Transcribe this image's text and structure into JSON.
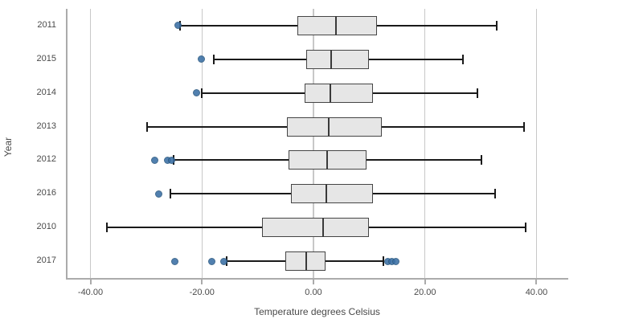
{
  "chart_data": {
    "type": "boxplot",
    "orientation": "horizontal",
    "title": "",
    "xlabel": "Temperature degrees Celsius",
    "ylabel": "Year",
    "xlim": [
      -44.4,
      45.7
    ],
    "x_ticks": [
      -40,
      -20,
      0,
      20,
      40
    ],
    "x_tick_labels": [
      "-40.00",
      "-20.00",
      "0.00",
      "20.00",
      "40.00"
    ],
    "grid": true,
    "legend": "none",
    "categories": [
      "2011",
      "2015",
      "2014",
      "2013",
      "2012",
      "2016",
      "2010",
      "2017"
    ],
    "series": [
      {
        "label": "2011",
        "whisker_low": -23.9,
        "q1": -2.9,
        "median": 4.1,
        "q3": 11.4,
        "whisker_high": 32.9,
        "outliers": [
          -24.3
        ]
      },
      {
        "label": "2015",
        "whisker_low": -17.9,
        "q1": -1.3,
        "median": 3.2,
        "q3": 9.9,
        "whisker_high": 26.8,
        "outliers": [
          -20.1
        ]
      },
      {
        "label": "2014",
        "whisker_low": -20.1,
        "q1": -1.6,
        "median": 3.0,
        "q3": 10.7,
        "whisker_high": 29.4,
        "outliers": [
          -21.0
        ]
      },
      {
        "label": "2013",
        "whisker_low": -29.8,
        "q1": -4.7,
        "median": 2.8,
        "q3": 12.2,
        "whisker_high": 37.8,
        "outliers": []
      },
      {
        "label": "2012",
        "whisker_low": -25.1,
        "q1": -4.4,
        "median": 2.5,
        "q3": 9.5,
        "whisker_high": 30.2,
        "outliers": [
          -28.4,
          -26.2,
          -25.5
        ]
      },
      {
        "label": "2016",
        "whisker_low": -25.7,
        "q1": -4.1,
        "median": 2.3,
        "q3": 10.6,
        "whisker_high": 32.6,
        "outliers": [
          -27.8
        ]
      },
      {
        "label": "2010",
        "whisker_low": -37.0,
        "q1": -9.2,
        "median": 1.7,
        "q3": 10.0,
        "whisker_high": 38.0,
        "outliers": []
      },
      {
        "label": "2017",
        "whisker_low": -15.6,
        "q1": -5.1,
        "median": -1.3,
        "q3": 2.2,
        "whisker_high": 12.5,
        "outliers": [
          -24.9,
          -18.2,
          -16.1,
          13.4,
          14.0,
          14.8
        ]
      }
    ],
    "colors": {
      "box_fill": "#e6e6e6",
      "box_border": "#454545",
      "whisker": "#1a1a1a",
      "outlier_fill": "#3a6fa5",
      "outlier_border": "#2a5880",
      "gridline": "#c8c8c8",
      "axis_line": "#ababab",
      "label_text": "#4a4a4a"
    }
  }
}
